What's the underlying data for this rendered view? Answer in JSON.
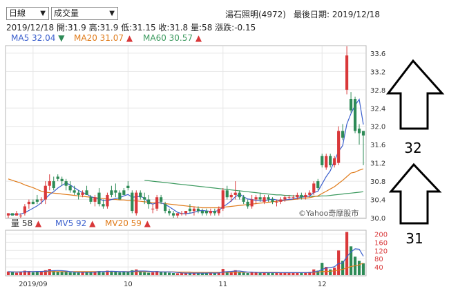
{
  "controls": {
    "period_select": "日線",
    "indicator_select": "成交量"
  },
  "header": {
    "stock": "湯石照明(4972)",
    "latest_date_label": "最後日期: 2019/12/18",
    "quote_date": "2019/12/18",
    "open": "開:31.9",
    "high": "高:31.9",
    "low": "低:31.15",
    "close": "收:31.8",
    "volume": "量:58",
    "change": "漲跌:-0.15"
  },
  "ma_legend": [
    {
      "label": "MA5 32.04",
      "arrow": "▼",
      "color": "#3a5fcd",
      "arrow_color": "#2e8b57"
    },
    {
      "label": "MA20 31.07",
      "arrow": "▲",
      "color": "#e07b1a",
      "arrow_color": "#d9383a"
    },
    {
      "label": "MA60 30.57",
      "arrow": "▲",
      "color": "#3c9a5f",
      "arrow_color": "#d9383a"
    }
  ],
  "vol_legend": [
    {
      "label": "量 58",
      "arrow": "▲",
      "color": "#333333"
    },
    {
      "label": "MV5 92",
      "arrow": "▲",
      "color": "#3a5fcd"
    },
    {
      "label": "MV20 59",
      "arrow": "▲",
      "color": "#e07b1a"
    }
  ],
  "watermark": "©Yahoo奇摩股市",
  "annotations": {
    "upper": "32",
    "lower": "31"
  },
  "colors": {
    "up": "#d9383a",
    "down": "#2e8b57",
    "ma5": "#3a5fcd",
    "ma20": "#e07b1a",
    "ma60": "#3c9a5f",
    "grid": "#e6e6e6"
  },
  "chart_data": {
    "type": "candlestick",
    "price_axis": {
      "ticks": [
        30.0,
        30.4,
        30.8,
        31.2,
        31.6,
        32.0,
        32.4,
        32.8,
        33.2,
        33.6
      ],
      "range": [
        30.0,
        33.75
      ]
    },
    "volume_axis": {
      "ticks": [
        40,
        80,
        120,
        160,
        200
      ],
      "range": [
        0,
        215
      ]
    },
    "x_tick_labels": [
      "2019/09",
      "10",
      "11",
      "12"
    ],
    "x_tick_index": [
      6,
      29,
      52,
      76
    ],
    "candles": [
      [
        30.05,
        30.1,
        30.0,
        30.1
      ],
      [
        30.1,
        30.1,
        30.05,
        30.05
      ],
      [
        30.05,
        30.15,
        30.05,
        30.1
      ],
      [
        30.05,
        30.1,
        30.0,
        30.05
      ],
      [
        30.1,
        30.3,
        30.05,
        30.25
      ],
      [
        30.3,
        30.4,
        30.2,
        30.35
      ],
      [
        30.35,
        30.4,
        30.3,
        30.3
      ],
      [
        30.4,
        30.5,
        30.3,
        30.35
      ],
      [
        30.4,
        30.45,
        30.3,
        30.4
      ],
      [
        30.4,
        30.8,
        30.3,
        30.7
      ],
      [
        30.7,
        30.95,
        30.6,
        30.8
      ],
      [
        30.8,
        30.9,
        30.6,
        30.65
      ],
      [
        30.9,
        30.95,
        30.8,
        30.85
      ],
      [
        30.85,
        30.9,
        30.7,
        30.8
      ],
      [
        30.8,
        30.85,
        30.6,
        30.7
      ],
      [
        30.7,
        30.8,
        30.55,
        30.6
      ],
      [
        30.6,
        30.7,
        30.5,
        30.55
      ],
      [
        30.55,
        30.6,
        30.4,
        30.5
      ],
      [
        30.5,
        30.6,
        30.45,
        30.55
      ],
      [
        30.6,
        30.7,
        30.5,
        30.5
      ],
      [
        30.45,
        30.5,
        30.3,
        30.35
      ],
      [
        30.35,
        30.5,
        30.25,
        30.45
      ],
      [
        30.55,
        30.65,
        30.25,
        30.3
      ],
      [
        30.3,
        30.4,
        30.2,
        30.25
      ],
      [
        30.25,
        30.55,
        30.2,
        30.5
      ],
      [
        30.6,
        30.7,
        30.45,
        30.5
      ],
      [
        30.6,
        30.75,
        30.45,
        30.55
      ],
      [
        30.55,
        30.6,
        30.4,
        30.4
      ],
      [
        30.6,
        30.65,
        30.5,
        30.5
      ],
      [
        30.7,
        30.8,
        30.6,
        30.65
      ],
      [
        30.55,
        30.6,
        30.1,
        30.15
      ],
      [
        30.1,
        30.6,
        30.05,
        30.55
      ],
      [
        30.55,
        30.6,
        30.4,
        30.45
      ],
      [
        30.45,
        30.55,
        30.3,
        30.4
      ],
      [
        30.4,
        30.5,
        30.2,
        30.3
      ],
      [
        30.2,
        30.3,
        30.1,
        30.2
      ],
      [
        30.2,
        30.5,
        30.15,
        30.45
      ],
      [
        30.45,
        30.5,
        30.3,
        30.35
      ],
      [
        30.3,
        30.35,
        30.1,
        30.15
      ],
      [
        30.15,
        30.2,
        30.05,
        30.1
      ],
      [
        30.1,
        30.15,
        30.0,
        30.05
      ],
      [
        30.05,
        30.1,
        30.0,
        30.1
      ],
      [
        30.1,
        30.15,
        30.05,
        30.1
      ],
      [
        30.1,
        30.15,
        30.05,
        30.15
      ],
      [
        30.2,
        30.3,
        30.1,
        30.15
      ],
      [
        30.15,
        30.25,
        30.05,
        30.2
      ],
      [
        30.2,
        30.25,
        30.1,
        30.15
      ],
      [
        30.15,
        30.2,
        30.05,
        30.1
      ],
      [
        30.15,
        30.2,
        30.05,
        30.1
      ],
      [
        30.1,
        30.2,
        30.05,
        30.15
      ],
      [
        30.15,
        30.2,
        30.05,
        30.1
      ],
      [
        30.1,
        30.25,
        30.05,
        30.2
      ],
      [
        30.2,
        30.65,
        30.15,
        30.6
      ],
      [
        30.6,
        30.7,
        30.4,
        30.45
      ],
      [
        30.45,
        30.55,
        30.35,
        30.5
      ],
      [
        30.5,
        30.8,
        30.4,
        30.55
      ],
      [
        30.55,
        30.6,
        30.4,
        30.45
      ],
      [
        30.45,
        30.5,
        30.3,
        30.35
      ],
      [
        30.35,
        30.4,
        30.2,
        30.25
      ],
      [
        30.25,
        30.5,
        30.2,
        30.4
      ],
      [
        30.4,
        30.5,
        30.3,
        30.45
      ],
      [
        30.45,
        30.55,
        30.35,
        30.4
      ],
      [
        30.35,
        30.5,
        30.3,
        30.45
      ],
      [
        30.45,
        30.5,
        30.35,
        30.4
      ],
      [
        30.4,
        30.45,
        30.3,
        30.35
      ],
      [
        30.35,
        30.4,
        30.25,
        30.35
      ],
      [
        30.35,
        30.45,
        30.3,
        30.4
      ],
      [
        30.4,
        30.5,
        30.35,
        30.45
      ],
      [
        30.45,
        30.5,
        30.4,
        30.45
      ],
      [
        30.45,
        30.5,
        30.4,
        30.45
      ],
      [
        30.45,
        30.55,
        30.4,
        30.5
      ],
      [
        30.5,
        30.55,
        30.4,
        30.45
      ],
      [
        30.45,
        30.55,
        30.4,
        30.5
      ],
      [
        30.5,
        30.6,
        30.45,
        30.55
      ],
      [
        30.55,
        30.8,
        30.5,
        30.75
      ],
      [
        30.8,
        30.85,
        30.6,
        30.65
      ],
      [
        31.35,
        31.4,
        31.1,
        31.15
      ],
      [
        31.1,
        31.4,
        31.05,
        31.35
      ],
      [
        31.35,
        31.4,
        31.1,
        31.15
      ],
      [
        31.15,
        31.35,
        31.1,
        31.3
      ],
      [
        31.2,
        32.0,
        31.15,
        31.9
      ],
      [
        31.9,
        32.05,
        31.7,
        31.75
      ],
      [
        32.8,
        33.75,
        32.7,
        33.55
      ],
      [
        32.6,
        32.75,
        32.3,
        32.35
      ],
      [
        32.6,
        32.65,
        31.85,
        31.9
      ],
      [
        31.95,
        32.05,
        31.6,
        31.85
      ],
      [
        31.9,
        31.9,
        31.15,
        31.8
      ]
    ],
    "volume": [
      18,
      16,
      12,
      15,
      22,
      20,
      14,
      18,
      16,
      24,
      30,
      20,
      16,
      18,
      15,
      14,
      13,
      12,
      14,
      16,
      15,
      18,
      20,
      14,
      22,
      18,
      16,
      14,
      15,
      16,
      24,
      28,
      18,
      14,
      12,
      14,
      20,
      18,
      14,
      12,
      10,
      9,
      10,
      11,
      12,
      10,
      9,
      10,
      11,
      12,
      10,
      14,
      30,
      18,
      14,
      24,
      16,
      12,
      10,
      14,
      12,
      10,
      14,
      12,
      10,
      12,
      14,
      12,
      10,
      11,
      12,
      10,
      14,
      16,
      28,
      22,
      60,
      40,
      28,
      36,
      120,
      70,
      210,
      140,
      90,
      70,
      58
    ],
    "ma5": [
      30.08,
      30.07,
      30.08,
      30.08,
      30.11,
      30.16,
      30.21,
      30.26,
      30.33,
      30.42,
      30.51,
      30.57,
      30.65,
      30.71,
      30.76,
      30.72,
      30.66,
      30.6,
      30.55,
      30.52,
      30.46,
      30.44,
      30.41,
      30.38,
      30.37,
      30.4,
      30.42,
      30.44,
      30.48,
      30.51,
      30.45,
      30.46,
      30.47,
      30.43,
      30.33,
      30.3,
      30.33,
      30.33,
      30.29,
      30.24,
      30.18,
      30.12,
      30.09,
      30.09,
      30.1,
      30.12,
      30.15,
      30.16,
      30.15,
      30.14,
      30.14,
      30.16,
      30.24,
      30.3,
      30.37,
      30.46,
      30.52,
      30.46,
      30.41,
      30.4,
      30.38,
      30.37,
      30.37,
      30.39,
      30.41,
      30.39,
      30.38,
      30.39,
      30.4,
      30.41,
      30.43,
      30.45,
      30.46,
      30.48,
      30.55,
      30.58,
      30.74,
      30.9,
      31.03,
      31.25,
      31.45,
      31.58,
      32.05,
      32.28,
      32.46,
      32.59,
      32.04
    ],
    "ma20": [
      30.85,
      30.82,
      30.79,
      30.76,
      30.72,
      30.69,
      30.66,
      30.62,
      30.58,
      30.56,
      30.55,
      30.54,
      30.53,
      30.52,
      30.51,
      30.5,
      30.49,
      30.48,
      30.47,
      30.46,
      30.45,
      30.44,
      30.43,
      30.42,
      30.41,
      30.4,
      30.4,
      30.39,
      30.39,
      30.38,
      30.37,
      30.37,
      30.36,
      30.35,
      30.34,
      30.33,
      30.33,
      30.32,
      30.31,
      30.3,
      30.29,
      30.28,
      30.27,
      30.26,
      30.25,
      30.24,
      30.23,
      30.22,
      30.22,
      30.22,
      30.22,
      30.22,
      30.23,
      30.24,
      30.25,
      30.26,
      30.27,
      30.28,
      30.29,
      30.3,
      30.31,
      30.32,
      30.33,
      30.34,
      30.35,
      30.36,
      30.37,
      30.38,
      30.39,
      30.4,
      30.41,
      30.42,
      30.43,
      30.44,
      30.46,
      30.48,
      30.53,
      30.58,
      30.63,
      30.68,
      30.75,
      30.82,
      30.9,
      30.98,
      31.0,
      31.04,
      31.07
    ],
    "ma60": [
      null,
      null,
      null,
      null,
      null,
      null,
      null,
      null,
      null,
      null,
      null,
      null,
      null,
      null,
      null,
      null,
      null,
      null,
      null,
      null,
      null,
      null,
      null,
      null,
      null,
      null,
      null,
      null,
      null,
      null,
      null,
      null,
      null,
      30.82,
      30.81,
      30.8,
      30.79,
      30.78,
      30.77,
      30.76,
      30.75,
      30.74,
      30.73,
      30.72,
      30.71,
      30.7,
      30.69,
      30.68,
      30.67,
      30.66,
      30.65,
      30.64,
      30.63,
      30.62,
      30.61,
      30.6,
      30.59,
      30.58,
      30.57,
      30.56,
      30.55,
      30.54,
      30.53,
      30.52,
      30.51,
      30.5,
      30.5,
      30.49,
      30.49,
      30.48,
      30.48,
      30.47,
      30.47,
      30.47,
      30.47,
      30.47,
      30.48,
      30.48,
      30.49,
      30.5,
      30.51,
      30.52,
      30.53,
      30.54,
      30.55,
      30.56,
      30.57
    ],
    "mv5": [
      17,
      16,
      15,
      16,
      17,
      17,
      17,
      18,
      18,
      19,
      21,
      22,
      23,
      22,
      20,
      17,
      15,
      14,
      14,
      14,
      14,
      15,
      17,
      17,
      18,
      19,
      18,
      17,
      17,
      16,
      18,
      20,
      20,
      20,
      19,
      17,
      17,
      16,
      16,
      16,
      15,
      13,
      11,
      10,
      10,
      10,
      10,
      10,
      10,
      11,
      10,
      11,
      15,
      17,
      18,
      20,
      20,
      17,
      15,
      15,
      14,
      12,
      12,
      12,
      12,
      12,
      12,
      12,
      12,
      12,
      12,
      12,
      12,
      13,
      16,
      18,
      28,
      35,
      37,
      41,
      57,
      59,
      90,
      113,
      128,
      126,
      92
    ],
    "mv20": [
      16,
      16,
      16,
      16,
      16,
      17,
      17,
      17,
      17,
      17,
      17,
      17,
      17,
      17,
      17,
      17,
      17,
      17,
      17,
      17,
      17,
      17,
      17,
      17,
      17,
      17,
      17,
      17,
      17,
      17,
      17,
      17,
      17,
      17,
      17,
      17,
      17,
      16,
      16,
      16,
      16,
      15,
      15,
      15,
      15,
      14,
      14,
      14,
      14,
      14,
      14,
      14,
      14,
      14,
      14,
      14,
      14,
      14,
      14,
      14,
      14,
      14,
      14,
      14,
      14,
      14,
      13,
      13,
      13,
      13,
      13,
      13,
      13,
      13,
      14,
      15,
      17,
      18,
      19,
      21,
      25,
      28,
      36,
      42,
      46,
      50,
      59
    ]
  }
}
